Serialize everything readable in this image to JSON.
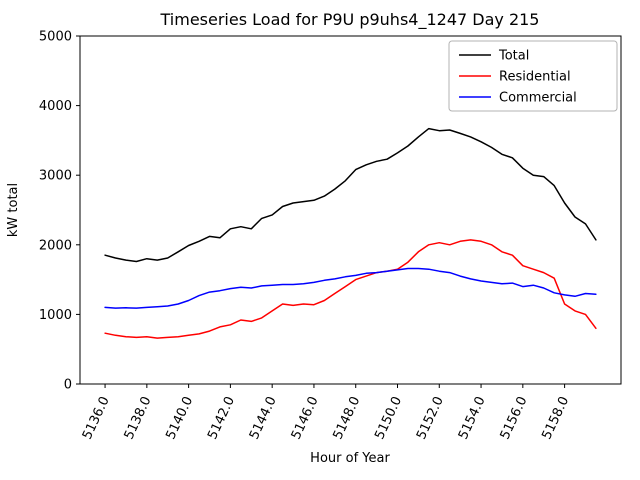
{
  "chart_data": {
    "type": "line",
    "title": "Timeseries Load for P9U p9uhs4_1247  Day 215",
    "xlabel": "Hour of Year",
    "ylabel": "kW total",
    "xlim": [
      5134.8,
      5160.7
    ],
    "ylim": [
      0,
      5000
    ],
    "x_ticks": [
      5136,
      5138,
      5140,
      5142,
      5144,
      5146,
      5148,
      5150,
      5152,
      5154,
      5156,
      5158
    ],
    "x_tick_labels": [
      "5136.0",
      "5138.0",
      "5140.0",
      "5142.0",
      "5144.0",
      "5146.0",
      "5148.0",
      "5150.0",
      "5152.0",
      "5154.0",
      "5156.0",
      "5158.0"
    ],
    "y_ticks": [
      0,
      1000,
      2000,
      3000,
      4000,
      5000
    ],
    "y_tick_labels": [
      "0",
      "1000",
      "2000",
      "3000",
      "4000",
      "5000"
    ],
    "grid": false,
    "legend_position": "upper right",
    "x": [
      5136.0,
      5136.5,
      5137.0,
      5137.5,
      5138.0,
      5138.5,
      5139.0,
      5139.5,
      5140.0,
      5140.5,
      5141.0,
      5141.5,
      5142.0,
      5142.5,
      5143.0,
      5143.5,
      5144.0,
      5144.5,
      5145.0,
      5145.5,
      5146.0,
      5146.5,
      5147.0,
      5147.5,
      5148.0,
      5148.5,
      5149.0,
      5149.5,
      5150.0,
      5150.5,
      5151.0,
      5151.5,
      5152.0,
      5152.5,
      5153.0,
      5153.5,
      5154.0,
      5154.5,
      5155.0,
      5155.5,
      5156.0,
      5156.5,
      5157.0,
      5157.5,
      5158.0,
      5158.5,
      5159.0,
      5159.5
    ],
    "series": [
      {
        "name": "Total",
        "color": "#000000",
        "values": [
          1850,
          1810,
          1780,
          1760,
          1800,
          1780,
          1810,
          1900,
          1990,
          2050,
          2120,
          2100,
          2230,
          2260,
          2230,
          2380,
          2430,
          2550,
          2600,
          2620,
          2640,
          2700,
          2800,
          2920,
          3080,
          3150,
          3200,
          3230,
          3320,
          3420,
          3550,
          3670,
          3640,
          3650,
          3600,
          3550,
          3480,
          3400,
          3300,
          3250,
          3100,
          3000,
          2980,
          2850,
          2600,
          2400,
          2300,
          2070
        ]
      },
      {
        "name": "Residential",
        "color": "#ff0000",
        "values": [
          730,
          700,
          680,
          670,
          680,
          660,
          670,
          680,
          700,
          720,
          760,
          820,
          850,
          920,
          900,
          950,
          1050,
          1150,
          1130,
          1150,
          1140,
          1200,
          1300,
          1400,
          1500,
          1550,
          1600,
          1620,
          1650,
          1750,
          1900,
          2000,
          2030,
          2000,
          2050,
          2070,
          2050,
          2000,
          1900,
          1850,
          1700,
          1650,
          1600,
          1520,
          1150,
          1050,
          1000,
          800
        ]
      },
      {
        "name": "Commercial",
        "color": "#0000ff",
        "values": [
          1100,
          1090,
          1095,
          1090,
          1100,
          1110,
          1120,
          1150,
          1200,
          1270,
          1320,
          1340,
          1370,
          1390,
          1380,
          1410,
          1420,
          1430,
          1430,
          1440,
          1460,
          1490,
          1510,
          1540,
          1560,
          1590,
          1600,
          1620,
          1640,
          1660,
          1660,
          1650,
          1620,
          1600,
          1550,
          1510,
          1480,
          1460,
          1440,
          1450,
          1400,
          1420,
          1380,
          1310,
          1280,
          1260,
          1300,
          1290
        ]
      }
    ]
  }
}
